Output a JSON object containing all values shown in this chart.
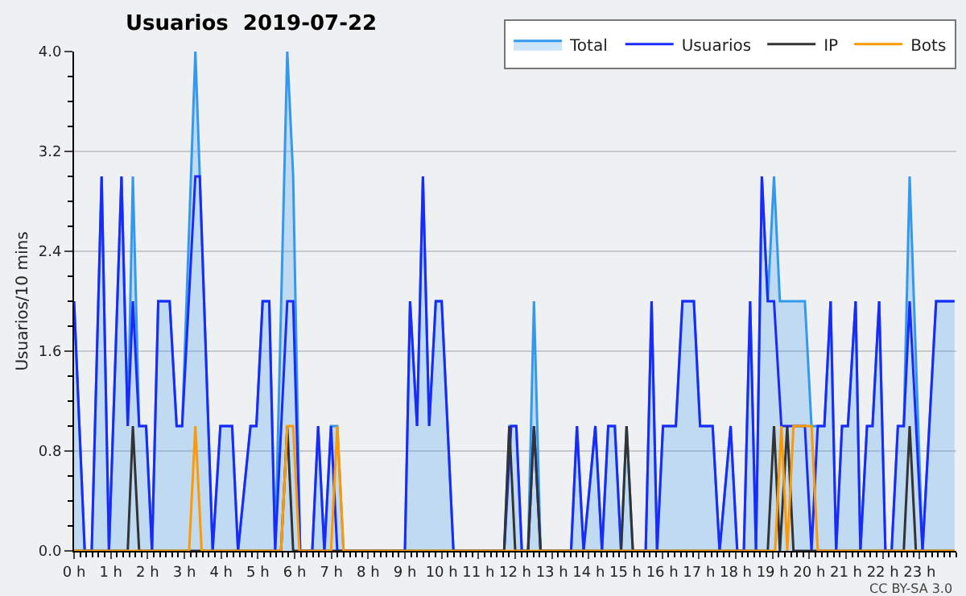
{
  "chart_data": {
    "type": "line",
    "title": "Usuarios  2019-07-22",
    "ylabel": "Usuarios/10 mins",
    "xlim": [
      0,
      24
    ],
    "ylim": [
      0,
      4
    ],
    "xticks": [
      {
        "value": 0,
        "label": "0 h"
      },
      {
        "value": 1,
        "label": "1 h"
      },
      {
        "value": 2,
        "label": "2 h"
      },
      {
        "value": 3,
        "label": "3 h"
      },
      {
        "value": 4,
        "label": "4 h"
      },
      {
        "value": 5,
        "label": "5 h"
      },
      {
        "value": 6,
        "label": "6 h"
      },
      {
        "value": 7,
        "label": "7 h"
      },
      {
        "value": 8,
        "label": "8 h"
      },
      {
        "value": 9,
        "label": "9 h"
      },
      {
        "value": 10,
        "label": "10 h"
      },
      {
        "value": 11,
        "label": "11 h"
      },
      {
        "value": 12,
        "label": "12 h"
      },
      {
        "value": 13,
        "label": "13 h"
      },
      {
        "value": 14,
        "label": "14 h"
      },
      {
        "value": 15,
        "label": "15 h"
      },
      {
        "value": 16,
        "label": "16 h"
      },
      {
        "value": 17,
        "label": "17 h"
      },
      {
        "value": 18,
        "label": "18 h"
      },
      {
        "value": 19,
        "label": "19 h"
      },
      {
        "value": 20,
        "label": "20 h"
      },
      {
        "value": 21,
        "label": "21 h"
      },
      {
        "value": 22,
        "label": "22 h"
      },
      {
        "value": 23,
        "label": "23 h"
      }
    ],
    "yticks": [
      {
        "value": 0,
        "label": "0.0"
      },
      {
        "value": 0.8,
        "label": "0.8"
      },
      {
        "value": 1.6,
        "label": "1.6"
      },
      {
        "value": 2.4,
        "label": "2.4"
      },
      {
        "value": 3.2,
        "label": "3.2"
      },
      {
        "value": 4,
        "label": "4.0"
      }
    ],
    "grid": "y",
    "legend": "top right",
    "marker": "none",
    "line_style": "solid",
    "annotations": [
      "CC BY-SA 3.0"
    ],
    "series": [
      {
        "name": "Total",
        "type": "area",
        "color": "#3399ee",
        "x": [
          0,
          0.29,
          0.48,
          0.75,
          0.95,
          1.29,
          1.46,
          1.6,
          1.77,
          1.96,
          2.12,
          2.29,
          2.6,
          2.79,
          2.94,
          3.3,
          3.42,
          3.77,
          3.98,
          4.3,
          4.46,
          4.8,
          4.96,
          5.13,
          5.31,
          5.47,
          5.8,
          5.96,
          6.15,
          6.48,
          6.64,
          6.81,
          6.99,
          7.16,
          7.33,
          9.0,
          9.14,
          9.33,
          9.49,
          9.66,
          9.84,
          10.0,
          10.32,
          11.7,
          11.84,
          12.03,
          12.18,
          12.35,
          12.51,
          12.69,
          13.52,
          13.68,
          13.86,
          14.18,
          14.36,
          14.53,
          14.71,
          14.88,
          15.03,
          15.2,
          15.55,
          15.71,
          15.86,
          16.02,
          16.37,
          16.55,
          16.86,
          17.03,
          17.37,
          17.56,
          17.86,
          18.04,
          18.22,
          18.39,
          18.55,
          18.71,
          18.87,
          19.04,
          19.2,
          19.88,
          20.06,
          20.23,
          20.41,
          20.58,
          20.73,
          20.89,
          21.05,
          21.26,
          21.39,
          21.57,
          21.72,
          21.9,
          22.07,
          22.24,
          22.41,
          22.57,
          22.73,
          23.08,
          23.45,
          23.95
        ],
        "values": [
          2,
          0,
          0,
          3,
          0,
          3,
          1,
          3,
          1,
          1,
          0,
          2,
          2,
          1,
          1,
          4,
          3,
          0,
          1,
          1,
          0,
          1,
          1,
          2,
          2,
          0,
          4,
          3,
          0,
          0,
          1,
          0,
          1,
          1,
          0,
          0,
          2,
          1,
          3,
          1,
          2,
          2,
          0,
          0,
          1,
          1,
          0,
          0,
          2,
          0,
          0,
          1,
          0,
          1,
          0,
          1,
          1,
          0,
          1,
          0,
          0,
          2,
          0,
          1,
          1,
          2,
          2,
          1,
          1,
          0,
          1,
          0,
          0,
          2,
          0,
          3,
          2,
          3,
          2,
          2,
          1,
          1,
          1,
          2,
          0,
          1,
          1,
          2,
          0,
          1,
          1,
          2,
          0,
          0,
          1,
          1,
          3,
          0,
          2,
          2
        ]
      },
      {
        "name": "Usuarios",
        "color": "#1a2aff",
        "x": [
          0,
          0.29,
          0.48,
          0.75,
          0.95,
          1.29,
          1.46,
          1.6,
          1.77,
          1.96,
          2.12,
          2.29,
          2.6,
          2.79,
          2.94,
          3.3,
          3.42,
          3.77,
          3.98,
          4.3,
          4.46,
          4.8,
          4.96,
          5.13,
          5.31,
          5.47,
          5.8,
          5.96,
          6.15,
          6.48,
          6.64,
          6.81,
          6.99,
          7.16,
          9.0,
          9.14,
          9.33,
          9.49,
          9.66,
          9.84,
          10.0,
          10.32,
          11.7,
          11.89,
          12.03,
          12.18,
          12.35,
          12.51,
          12.69,
          13.52,
          13.68,
          13.86,
          14.18,
          14.36,
          14.53,
          14.71,
          14.88,
          15.55,
          15.71,
          15.86,
          16.02,
          16.37,
          16.55,
          16.86,
          17.03,
          17.37,
          17.56,
          17.86,
          18.04,
          18.22,
          18.39,
          18.55,
          18.71,
          18.87,
          19.04,
          19.24,
          19.88,
          20.06,
          20.23,
          20.41,
          20.58,
          20.73,
          20.89,
          21.05,
          21.26,
          21.39,
          21.57,
          21.72,
          21.9,
          22.07,
          22.24,
          22.41,
          22.57,
          22.73,
          23.08,
          23.45,
          23.95
        ],
        "values": [
          2,
          0,
          0,
          3,
          0,
          3,
          1,
          2,
          1,
          1,
          0,
          2,
          2,
          1,
          1,
          3,
          3,
          0,
          1,
          1,
          0,
          1,
          1,
          2,
          2,
          0,
          2,
          2,
          0,
          0,
          1,
          0,
          1,
          0,
          0,
          2,
          1,
          3,
          1,
          2,
          2,
          0,
          0,
          1,
          1,
          0,
          0,
          1,
          0,
          0,
          1,
          0,
          1,
          0,
          1,
          1,
          0,
          0,
          2,
          0,
          1,
          1,
          2,
          2,
          1,
          1,
          0,
          1,
          0,
          0,
          2,
          0,
          3,
          2,
          2,
          1,
          1,
          0,
          1,
          1,
          2,
          0,
          1,
          1,
          2,
          0,
          1,
          1,
          2,
          0,
          0,
          1,
          1,
          2,
          0,
          2,
          2
        ]
      },
      {
        "name": "IP",
        "color": "#333333",
        "x": [
          0,
          1.46,
          1.6,
          1.77,
          5.63,
          5.8,
          5.96,
          11.7,
          11.84,
          12.0,
          12.35,
          12.51,
          12.69,
          14.88,
          15.03,
          15.2,
          18.87,
          19.04,
          19.2,
          19.4,
          19.57,
          22.57,
          22.73,
          22.9,
          23.95
        ],
        "values": [
          0,
          0,
          1,
          0,
          0,
          1,
          0,
          0,
          1,
          0,
          0,
          1,
          0,
          0,
          1,
          0,
          0,
          1,
          0,
          1,
          0,
          0,
          1,
          0,
          0
        ]
      },
      {
        "name": "Bots",
        "color": "#ff9900",
        "x": [
          0,
          3.13,
          3.3,
          3.47,
          5.63,
          5.8,
          5.96,
          6.13,
          6.99,
          7.16,
          7.33,
          19.07,
          19.24,
          19.4,
          19.57,
          20.06,
          20.23,
          23.95
        ],
        "values": [
          0,
          0,
          1,
          0,
          0,
          1,
          1,
          0,
          0,
          1,
          0,
          0,
          1,
          0,
          1,
          1,
          0,
          0
        ]
      }
    ]
  }
}
